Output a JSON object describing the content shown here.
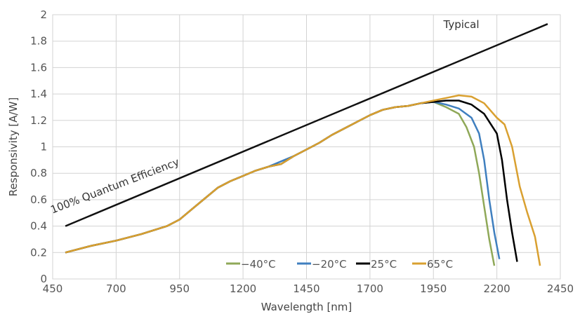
{
  "chart_data": {
    "type": "line",
    "xlabel": "Wavelength [nm]",
    "ylabel": "Responsivity [A/W]",
    "xlim": [
      450,
      2450
    ],
    "ylim": [
      0,
      2
    ],
    "xticks": [
      450,
      700,
      950,
      1200,
      1450,
      1700,
      1950,
      2200,
      2450
    ],
    "yticks": [
      0,
      0.2,
      0.4,
      0.6,
      0.8,
      1,
      1.2,
      1.4,
      1.6,
      1.8,
      2
    ],
    "grid": true,
    "legend": "bottom-right",
    "annotations": [
      {
        "text": "Typical",
        "x": 2060,
        "y": 1.9
      },
      {
        "text": "100% Quantum Efficiency",
        "x": 700,
        "y": 0.68,
        "rotation": -21
      }
    ],
    "reference_line": {
      "label": "100% Quantum Efficiency",
      "color": "#111111",
      "x": [
        500,
        2400
      ],
      "y": [
        0.4,
        1.93
      ]
    },
    "series": [
      {
        "name": "−40°C",
        "color": "#8fa858",
        "x": [
          500,
          600,
          700,
          800,
          900,
          950,
          1000,
          1050,
          1100,
          1150,
          1200,
          1250,
          1300,
          1350,
          1400,
          1450,
          1500,
          1550,
          1600,
          1650,
          1700,
          1750,
          1800,
          1850,
          1900,
          1950,
          2000,
          2050,
          2080,
          2110,
          2130,
          2150,
          2170,
          2190
        ],
        "y": [
          0.2,
          0.25,
          0.29,
          0.34,
          0.4,
          0.45,
          0.53,
          0.61,
          0.69,
          0.74,
          0.78,
          0.82,
          0.85,
          0.87,
          0.93,
          0.98,
          1.03,
          1.09,
          1.14,
          1.19,
          1.24,
          1.28,
          1.3,
          1.31,
          1.33,
          1.34,
          1.3,
          1.25,
          1.15,
          1.0,
          0.8,
          0.55,
          0.3,
          0.1
        ]
      },
      {
        "name": "−20°C",
        "color": "#3f7fbf",
        "x": [
          500,
          600,
          700,
          800,
          900,
          950,
          1000,
          1050,
          1100,
          1150,
          1200,
          1250,
          1300,
          1350,
          1400,
          1450,
          1500,
          1550,
          1600,
          1650,
          1700,
          1750,
          1800,
          1850,
          1900,
          1950,
          2000,
          2050,
          2100,
          2130,
          2150,
          2170,
          2190,
          2210
        ],
        "y": [
          0.2,
          0.25,
          0.29,
          0.34,
          0.4,
          0.45,
          0.53,
          0.61,
          0.69,
          0.74,
          0.78,
          0.82,
          0.85,
          0.89,
          0.93,
          0.98,
          1.03,
          1.09,
          1.14,
          1.19,
          1.24,
          1.28,
          1.3,
          1.31,
          1.33,
          1.34,
          1.32,
          1.29,
          1.22,
          1.1,
          0.9,
          0.6,
          0.35,
          0.15
        ]
      },
      {
        "name": "25°C",
        "color": "#000000",
        "x": [
          500,
          600,
          700,
          800,
          900,
          950,
          1000,
          1050,
          1100,
          1150,
          1200,
          1250,
          1300,
          1350,
          1400,
          1450,
          1500,
          1550,
          1600,
          1650,
          1700,
          1750,
          1800,
          1850,
          1900,
          1950,
          2000,
          2050,
          2100,
          2150,
          2200,
          2220,
          2240,
          2260,
          2280
        ],
        "y": [
          0.2,
          0.25,
          0.29,
          0.34,
          0.4,
          0.45,
          0.53,
          0.61,
          0.69,
          0.74,
          0.78,
          0.82,
          0.85,
          0.87,
          0.93,
          0.98,
          1.03,
          1.09,
          1.14,
          1.19,
          1.24,
          1.28,
          1.3,
          1.31,
          1.33,
          1.34,
          1.35,
          1.35,
          1.32,
          1.25,
          1.1,
          0.9,
          0.6,
          0.35,
          0.13
        ]
      },
      {
        "name": "65°C",
        "color": "#d9a030",
        "x": [
          500,
          600,
          700,
          800,
          900,
          950,
          1000,
          1050,
          1100,
          1150,
          1200,
          1250,
          1300,
          1350,
          1400,
          1450,
          1500,
          1550,
          1600,
          1650,
          1700,
          1750,
          1800,
          1850,
          1900,
          1950,
          2000,
          2050,
          2100,
          2150,
          2200,
          2230,
          2260,
          2290,
          2320,
          2350,
          2370
        ],
        "y": [
          0.2,
          0.25,
          0.29,
          0.34,
          0.4,
          0.45,
          0.53,
          0.61,
          0.69,
          0.74,
          0.78,
          0.82,
          0.85,
          0.87,
          0.93,
          0.98,
          1.03,
          1.09,
          1.14,
          1.19,
          1.24,
          1.28,
          1.3,
          1.31,
          1.33,
          1.35,
          1.37,
          1.39,
          1.38,
          1.33,
          1.22,
          1.17,
          1.0,
          0.7,
          0.5,
          0.32,
          0.1
        ]
      }
    ]
  }
}
